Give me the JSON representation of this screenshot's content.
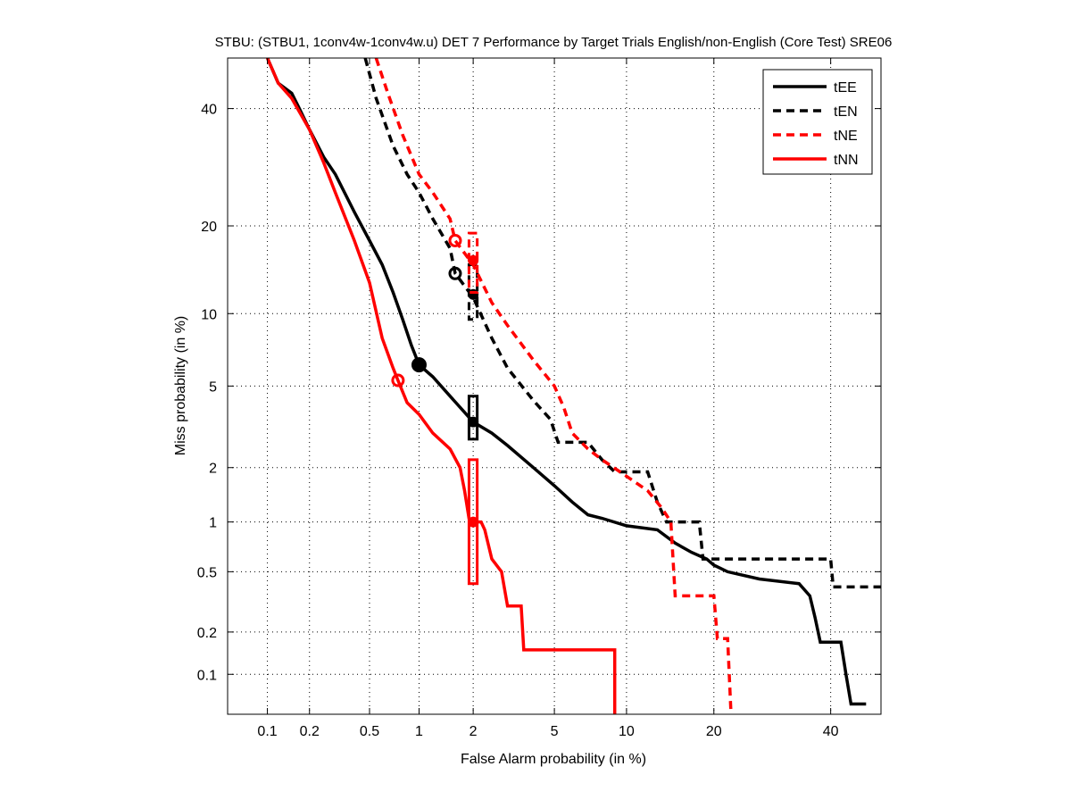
{
  "chart_data": {
    "type": "line",
    "title": "STBU: (STBU1, 1conv4w-1conv4w.u) DET 7 Performance by Target Trials English/non-English (Core Test) SRE06",
    "xlabel": "False Alarm probability (in %)",
    "ylabel": "Miss probability (in %)",
    "scale": "normal-deviate",
    "xlim": [
      0.05,
      50
    ],
    "ylim": [
      0.05,
      50
    ],
    "x_ticks": [
      0.1,
      0.2,
      0.5,
      1,
      2,
      5,
      10,
      20,
      40
    ],
    "x_tick_labels": [
      "0.1",
      "0.2",
      "0.5",
      "1",
      "2",
      "5",
      "10",
      "20",
      "40"
    ],
    "y_ticks": [
      0.1,
      0.2,
      0.5,
      1,
      2,
      5,
      10,
      20,
      40
    ],
    "y_tick_labels": [
      "0.1",
      "0.2",
      "0.5",
      "1",
      "2",
      "5",
      "10",
      "20",
      "40"
    ],
    "grid": true,
    "legend_position": "top-right",
    "series": [
      {
        "name": "tEE",
        "color": "#000000",
        "dash": false,
        "points": [
          [
            0.1,
            50
          ],
          [
            0.12,
            45
          ],
          [
            0.15,
            43
          ],
          [
            0.17,
            40
          ],
          [
            0.2,
            36
          ],
          [
            0.25,
            31
          ],
          [
            0.3,
            28
          ],
          [
            0.4,
            22
          ],
          [
            0.5,
            18
          ],
          [
            0.6,
            15
          ],
          [
            0.7,
            12
          ],
          [
            0.8,
            9.5
          ],
          [
            0.9,
            7.5
          ],
          [
            1,
            6.2
          ],
          [
            1.2,
            5.5
          ],
          [
            1.5,
            4.5
          ],
          [
            2,
            3.4
          ],
          [
            2.5,
            3
          ],
          [
            3,
            2.6
          ],
          [
            4,
            2.0
          ],
          [
            5,
            1.6
          ],
          [
            6,
            1.3
          ],
          [
            7,
            1.1
          ],
          [
            8,
            1.05
          ],
          [
            10,
            0.95
          ],
          [
            13,
            0.9
          ],
          [
            15,
            0.75
          ],
          [
            17,
            0.66
          ],
          [
            19,
            0.6
          ],
          [
            20,
            0.55
          ],
          [
            22,
            0.5
          ],
          [
            27,
            0.45
          ],
          [
            34,
            0.42
          ],
          [
            36,
            0.35
          ],
          [
            37,
            0.25
          ],
          [
            38,
            0.17
          ],
          [
            42,
            0.17
          ],
          [
            43,
            0.1
          ],
          [
            44,
            0.06
          ],
          [
            47,
            0.06
          ]
        ],
        "min_dcf": [
          1,
          6.2
        ],
        "act_dcf": [
          2,
          3.4
        ],
        "conf_box": {
          "x": [
            1.9,
            2.1
          ],
          "y": [
            2.8,
            4.5
          ]
        }
      },
      {
        "name": "tEN",
        "color": "#000000",
        "dash": true,
        "points": [
          [
            0.47,
            50
          ],
          [
            0.55,
            42
          ],
          [
            0.7,
            33
          ],
          [
            0.85,
            28
          ],
          [
            1,
            25
          ],
          [
            1.2,
            21
          ],
          [
            1.5,
            17
          ],
          [
            1.6,
            14
          ],
          [
            2,
            11.5
          ],
          [
            2.5,
            8
          ],
          [
            3,
            6
          ],
          [
            4,
            4.3
          ],
          [
            4.8,
            3.5
          ],
          [
            5.2,
            2.7
          ],
          [
            7,
            2.7
          ],
          [
            8,
            2.2
          ],
          [
            9,
            1.9
          ],
          [
            12,
            1.9
          ],
          [
            13,
            1.3
          ],
          [
            14,
            1.0
          ],
          [
            18,
            1.0
          ],
          [
            18.5,
            0.6
          ],
          [
            40,
            0.6
          ],
          [
            40.5,
            0.4
          ],
          [
            50,
            0.4
          ]
        ],
        "min_dcf": [
          1.6,
          14
        ],
        "act_dcf": [
          2,
          11.8
        ],
        "conf_box": {
          "x": [
            1.9,
            2.1
          ],
          "y": [
            9.5,
            15
          ]
        }
      },
      {
        "name": "tNE",
        "color": "#ff0000",
        "dash": true,
        "points": [
          [
            0.55,
            50
          ],
          [
            0.65,
            43
          ],
          [
            0.8,
            35
          ],
          [
            1,
            28
          ],
          [
            1.2,
            25
          ],
          [
            1.5,
            21
          ],
          [
            1.6,
            18
          ],
          [
            2,
            15
          ],
          [
            2.5,
            11
          ],
          [
            3,
            9
          ],
          [
            4,
            6.5
          ],
          [
            5,
            5
          ],
          [
            5.5,
            4
          ],
          [
            6,
            3
          ],
          [
            7,
            2.5
          ],
          [
            8,
            2.2
          ],
          [
            10,
            1.8
          ],
          [
            12,
            1.5
          ],
          [
            13.5,
            1.2
          ],
          [
            14.5,
            1.0
          ],
          [
            15,
            0.35
          ],
          [
            20,
            0.35
          ],
          [
            20.5,
            0.18
          ],
          [
            22,
            0.18
          ],
          [
            22.5,
            0.05
          ]
        ],
        "min_dcf": [
          1.6,
          18
        ],
        "act_dcf": [
          2,
          15.5
        ],
        "conf_box": {
          "x": [
            1.9,
            2.1
          ],
          "y": [
            12,
            19
          ]
        }
      },
      {
        "name": "tNN",
        "color": "#ff0000",
        "dash": false,
        "points": [
          [
            0.1,
            50
          ],
          [
            0.12,
            45
          ],
          [
            0.15,
            42
          ],
          [
            0.2,
            36
          ],
          [
            0.25,
            30
          ],
          [
            0.3,
            25
          ],
          [
            0.4,
            18
          ],
          [
            0.5,
            13
          ],
          [
            0.6,
            8
          ],
          [
            0.7,
            6
          ],
          [
            0.75,
            5.3
          ],
          [
            0.85,
            4.2
          ],
          [
            1,
            3.7
          ],
          [
            1.2,
            3.0
          ],
          [
            1.5,
            2.5
          ],
          [
            1.7,
            2.0
          ],
          [
            1.8,
            1.5
          ],
          [
            1.9,
            1.05
          ],
          [
            2,
            1.0
          ],
          [
            2.2,
            1.0
          ],
          [
            2.3,
            0.9
          ],
          [
            2.5,
            0.6
          ],
          [
            2.8,
            0.5
          ],
          [
            3,
            0.3
          ],
          [
            3.5,
            0.3
          ],
          [
            3.6,
            0.15
          ],
          [
            9,
            0.15
          ],
          [
            9,
            0.05
          ]
        ],
        "min_dcf": [
          0.75,
          5.3
        ],
        "act_dcf": [
          2,
          1.0
        ],
        "conf_box": {
          "x": [
            1.9,
            2.1
          ],
          "y": [
            0.42,
            2.2
          ]
        }
      }
    ]
  }
}
